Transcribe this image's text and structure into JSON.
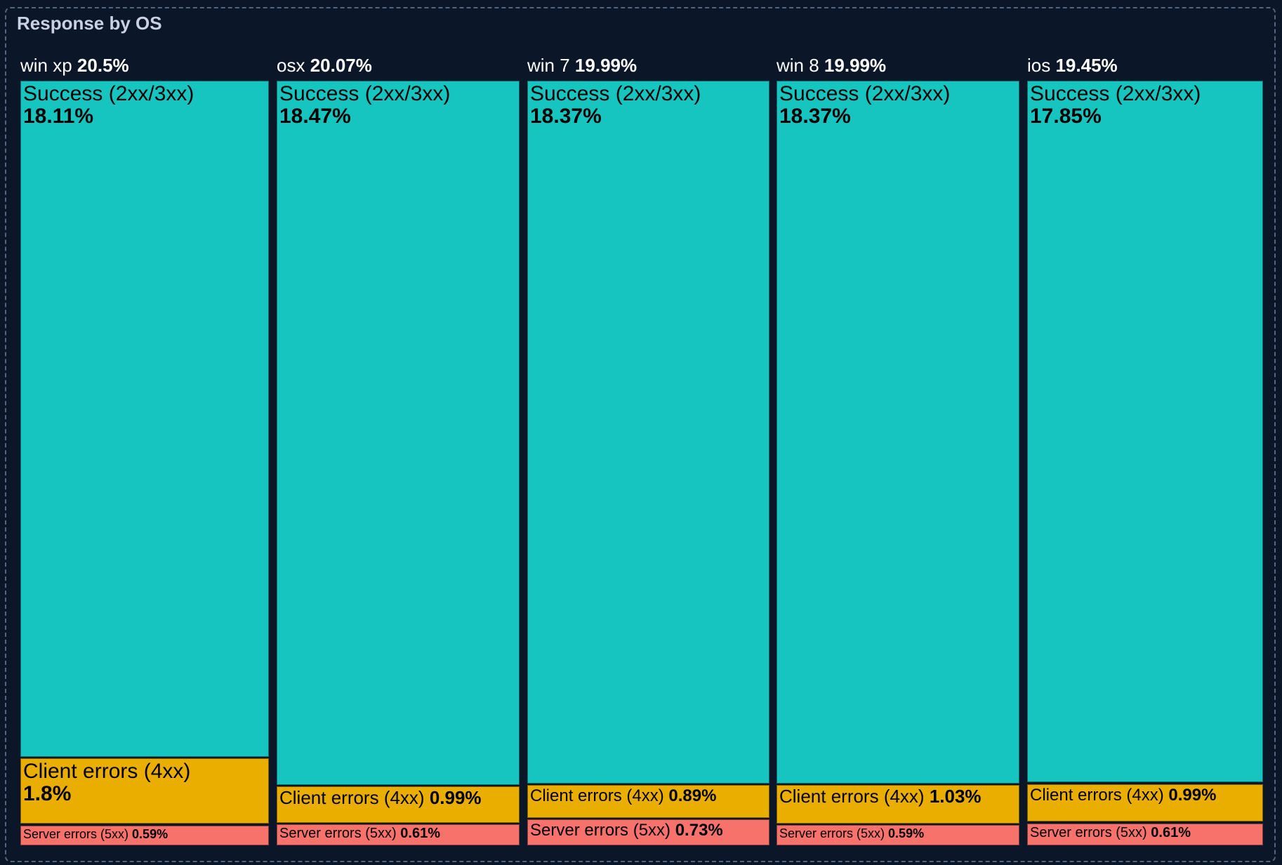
{
  "title": "Response by OS",
  "chart_data": {
    "type": "treemap",
    "title": "Response by OS",
    "colors": {
      "Success (2xx/3xx)": "#16c5c0",
      "Client errors (4xx)": "#e9ae00",
      "Server errors (5xx)": "#f6726b"
    },
    "groups": [
      {
        "name": "win xp",
        "total": "20.5%",
        "children": [
          {
            "name": "Success (2xx/3xx)",
            "value": "18.11%"
          },
          {
            "name": "Client errors (4xx)",
            "value": "1.8%"
          },
          {
            "name": "Server errors (5xx)",
            "value": "0.59%"
          }
        ]
      },
      {
        "name": "osx",
        "total": "20.07%",
        "children": [
          {
            "name": "Success (2xx/3xx)",
            "value": "18.47%"
          },
          {
            "name": "Client errors (4xx)",
            "value": "0.99%"
          },
          {
            "name": "Server errors (5xx)",
            "value": "0.61%"
          }
        ]
      },
      {
        "name": "win 7",
        "total": "19.99%",
        "children": [
          {
            "name": "Success (2xx/3xx)",
            "value": "18.37%"
          },
          {
            "name": "Client errors (4xx)",
            "value": "0.89%"
          },
          {
            "name": "Server errors (5xx)",
            "value": "0.73%"
          }
        ]
      },
      {
        "name": "win 8",
        "total": "19.99%",
        "children": [
          {
            "name": "Success (2xx/3xx)",
            "value": "18.37%"
          },
          {
            "name": "Client errors (4xx)",
            "value": "1.03%"
          },
          {
            "name": "Server errors (5xx)",
            "value": "0.59%"
          }
        ]
      },
      {
        "name": "ios",
        "total": "19.45%",
        "children": [
          {
            "name": "Success (2xx/3xx)",
            "value": "17.85%"
          },
          {
            "name": "Client errors (4xx)",
            "value": "0.99%"
          },
          {
            "name": "Server errors (5xx)",
            "value": "0.61%"
          }
        ]
      }
    ]
  }
}
